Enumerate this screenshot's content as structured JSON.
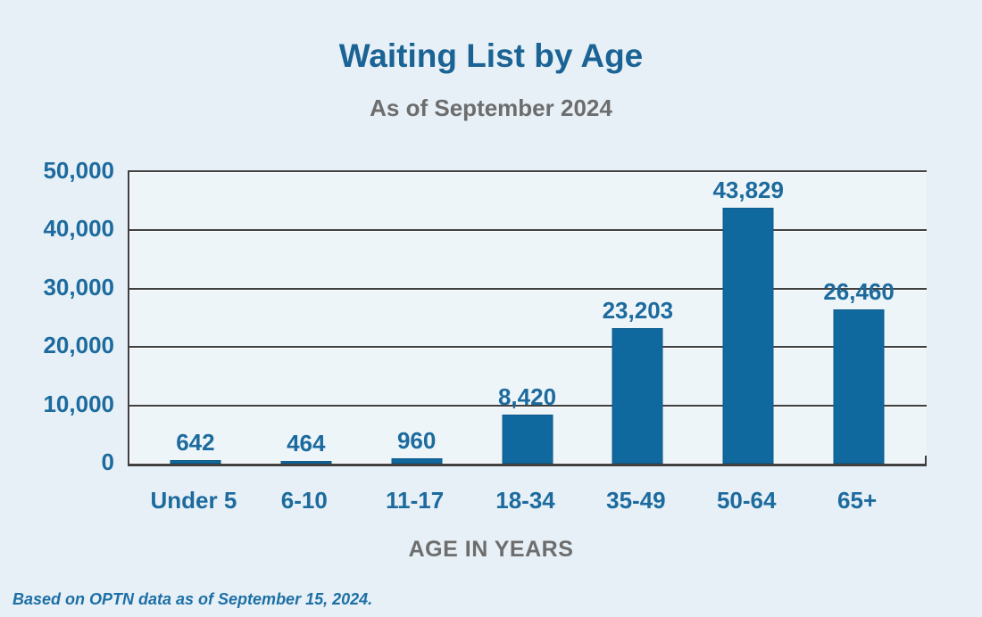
{
  "page": {
    "title": "Waiting List by Age",
    "subtitle": "As of September 2024",
    "footnote": "Based on OPTN data as of September 15, 2024."
  },
  "chart_data": {
    "type": "bar",
    "title": "Waiting List by Age",
    "subtitle": "As of September 2024",
    "categories": [
      "Under 5",
      "6-10",
      "11-17",
      "18-34",
      "35-49",
      "50-64",
      "65+"
    ],
    "values": [
      642,
      464,
      960,
      8420,
      23203,
      43829,
      26460
    ],
    "value_labels": [
      "642",
      "464",
      "960",
      "8,420",
      "23,203",
      "43,829",
      "26,460"
    ],
    "xlabel": "AGE IN YEARS",
    "ylabel": "",
    "ylim": [
      0,
      50000
    ],
    "ytick_interval": 10000,
    "yticks": [
      "0",
      "10,000",
      "20,000",
      "30,000",
      "40,000",
      "50,000"
    ],
    "grid": true,
    "legend": false,
    "annotations": [
      "Based on OPTN data as of September 15, 2024."
    ],
    "colors": {
      "bar": "#0f689e",
      "title_blue": "#1b6394",
      "text_blue": "#1d6b9e",
      "gray_text": "#6d6d6d",
      "grid": "#404040",
      "background": "#e6f0f6",
      "plot_background": "#edf5f9",
      "footnote_blue": "#1d6fa5"
    }
  }
}
